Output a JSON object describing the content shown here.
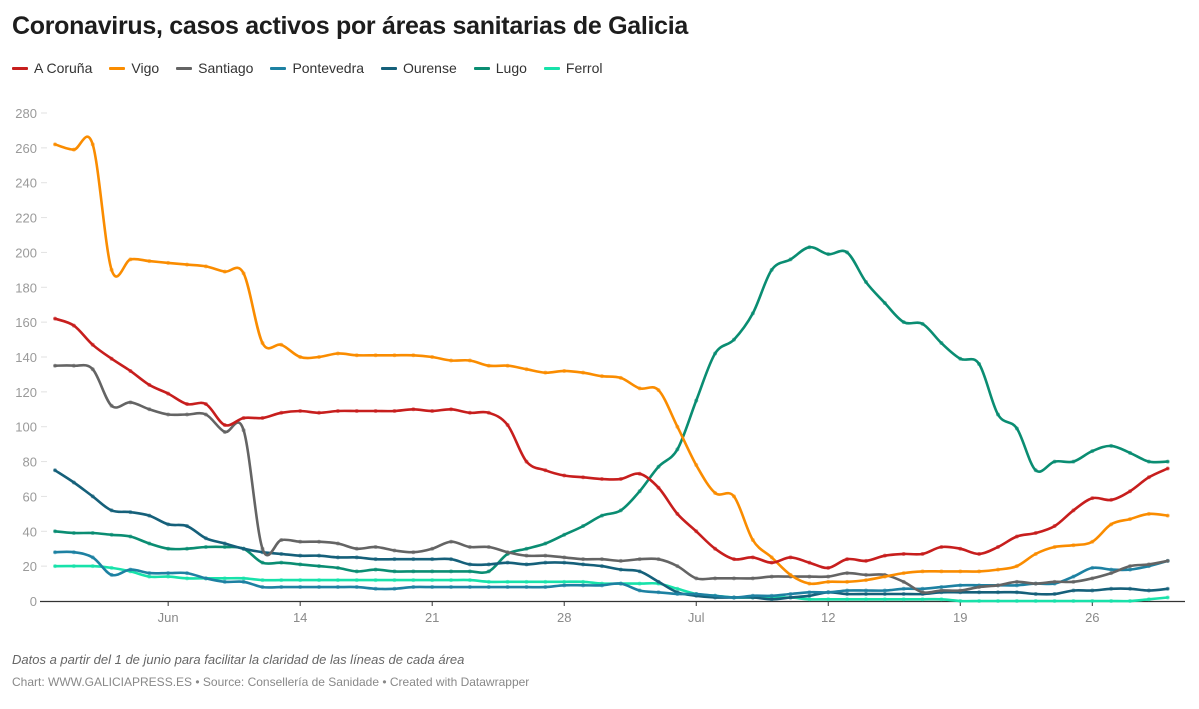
{
  "title": "Coronavirus, casos activos por áreas sanitarias de Galicia",
  "note": "Datos a partir del 1 de junio para facilitar la claridad de las líneas de cada área",
  "credit": "Chart: WWW.GALICIAPRESS.ES • Source: Consellería de Sanidade • Created with Datawrapper",
  "chart_data": {
    "type": "line",
    "title": "Coronavirus, casos activos por áreas sanitarias de Galicia",
    "xlabel": "",
    "ylabel": "",
    "x_start": "2020-06-01",
    "x_end": "2020-07-30",
    "x_tick_labels": [
      "Jun",
      "14",
      "21",
      "28",
      "Jul",
      "12",
      "19",
      "26"
    ],
    "x_tick_dates": [
      "2020-06-07",
      "2020-06-14",
      "2020-06-21",
      "2020-06-28",
      "2020-07-05",
      "2020-07-12",
      "2020-07-19",
      "2020-07-26"
    ],
    "ylim": [
      0,
      280
    ],
    "y_ticks": [
      0,
      20,
      40,
      60,
      80,
      100,
      120,
      140,
      160,
      180,
      200,
      220,
      240,
      260,
      280
    ],
    "grid": false,
    "legend": "top",
    "series": [
      {
        "name": "A Coruña",
        "color": "#c71e1d",
        "values": [
          162,
          158,
          147,
          139,
          132,
          124,
          119,
          113,
          113,
          101,
          105,
          105,
          108,
          109,
          108,
          109,
          109,
          109,
          109,
          110,
          109,
          110,
          108,
          108,
          101,
          80,
          75,
          72,
          71,
          70,
          70,
          73,
          65,
          50,
          40,
          30,
          24,
          25,
          22,
          25,
          22,
          19,
          24,
          23,
          26,
          27,
          27,
          31,
          30,
          27,
          31,
          37,
          39,
          43,
          52,
          59,
          58,
          63,
          71,
          76
        ]
      },
      {
        "name": "Vigo",
        "color": "#fa8c00",
        "values": [
          262,
          259,
          262,
          190,
          196,
          195,
          194,
          193,
          192,
          189,
          188,
          148,
          147,
          140,
          140,
          142,
          141,
          141,
          141,
          141,
          140,
          138,
          138,
          135,
          135,
          133,
          131,
          132,
          131,
          129,
          128,
          122,
          121,
          100,
          78,
          62,
          60,
          35,
          25,
          15,
          10,
          11,
          11,
          12,
          14,
          16,
          17,
          17,
          17,
          17,
          18,
          20,
          27,
          31,
          32,
          34,
          44,
          47,
          50,
          49
        ]
      },
      {
        "name": "Santiago",
        "color": "#646464",
        "values": [
          135,
          135,
          133,
          112,
          114,
          110,
          107,
          107,
          107,
          97,
          98,
          30,
          35,
          34,
          34,
          33,
          30,
          31,
          29,
          28,
          30,
          34,
          31,
          31,
          28,
          26,
          26,
          25,
          24,
          24,
          23,
          24,
          24,
          20,
          13,
          13,
          13,
          13,
          14,
          14,
          14,
          14,
          16,
          15,
          15,
          11,
          5,
          6,
          6,
          8,
          9,
          11,
          10,
          11,
          11,
          13,
          16,
          20,
          21,
          23
        ]
      },
      {
        "name": "Pontevedra",
        "color": "#1d81a2",
        "values": [
          28,
          28,
          25,
          15,
          18,
          16,
          16,
          16,
          13,
          11,
          11,
          8,
          8,
          8,
          8,
          8,
          8,
          7,
          7,
          8,
          8,
          8,
          8,
          8,
          8,
          8,
          8,
          9,
          9,
          9,
          10,
          6,
          5,
          4,
          4,
          3,
          2,
          3,
          3,
          4,
          5,
          5,
          6,
          6,
          6,
          7,
          7,
          8,
          9,
          9,
          9,
          9,
          10,
          10,
          14,
          19,
          18,
          18,
          20,
          23
        ]
      },
      {
        "name": "Ourense",
        "color": "#15607a",
        "values": [
          75,
          68,
          60,
          52,
          51,
          49,
          44,
          43,
          36,
          33,
          30,
          28,
          27,
          26,
          26,
          25,
          25,
          24,
          24,
          24,
          24,
          24,
          21,
          21,
          22,
          21,
          22,
          22,
          21,
          20,
          18,
          17,
          11,
          5,
          3,
          2,
          2,
          2,
          1,
          2,
          3,
          5,
          4,
          4,
          4,
          4,
          4,
          5,
          5,
          5,
          5,
          5,
          4,
          4,
          6,
          6,
          7,
          7,
          6,
          7
        ]
      },
      {
        "name": "Lugo",
        "color": "#0a8d72",
        "values": [
          40,
          39,
          39,
          38,
          37,
          33,
          30,
          30,
          31,
          31,
          30,
          22,
          22,
          21,
          20,
          19,
          17,
          18,
          17,
          17,
          17,
          17,
          17,
          17,
          27,
          30,
          33,
          38,
          43,
          49,
          52,
          63,
          77,
          87,
          115,
          142,
          150,
          165,
          190,
          196,
          203,
          199,
          200,
          183,
          171,
          160,
          159,
          148,
          139,
          136,
          107,
          99,
          75,
          80,
          80,
          86,
          89,
          85,
          80,
          80
        ]
      },
      {
        "name": "Ferrol",
        "color": "#17e2aa",
        "values": [
          20,
          20,
          20,
          19,
          17,
          14,
          14,
          13,
          13,
          13,
          13,
          12,
          12,
          12,
          12,
          12,
          12,
          12,
          12,
          12,
          12,
          12,
          12,
          11,
          11,
          11,
          11,
          11,
          11,
          10,
          10,
          10,
          10,
          7,
          4,
          3,
          2,
          2,
          2,
          2,
          1,
          1,
          1,
          1,
          1,
          1,
          1,
          1,
          0,
          0,
          0,
          0,
          0,
          0,
          0,
          0,
          0,
          0,
          1,
          2
        ]
      }
    ]
  }
}
